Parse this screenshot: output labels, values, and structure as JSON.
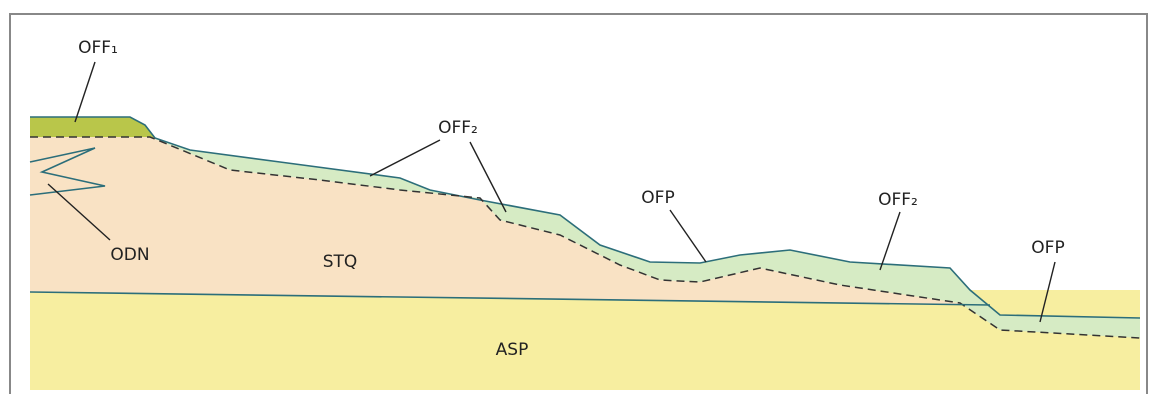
{
  "labels": [
    "OFF₁",
    "OFF₂",
    "OFP",
    "OFF₂",
    "OFP",
    "ODN",
    "STQ",
    "ASP"
  ]
}
